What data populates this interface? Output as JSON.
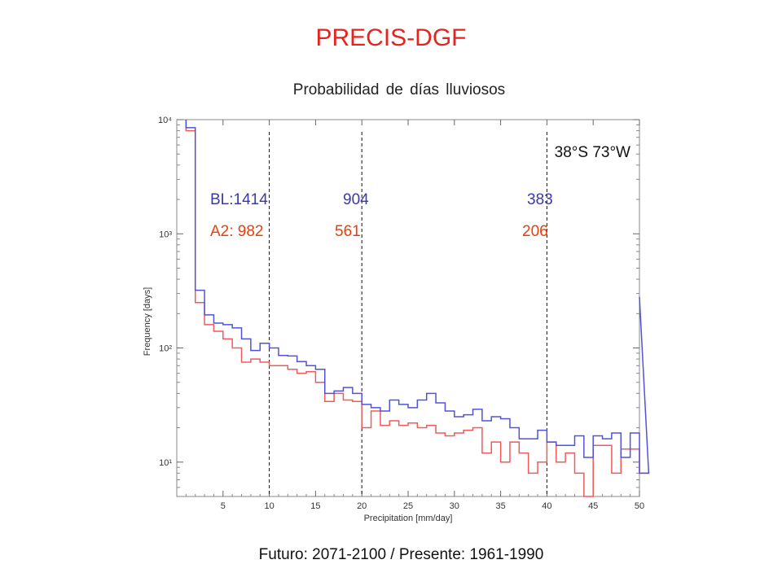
{
  "header": {
    "title": "PRECIS-DGF",
    "subtitle": "Probabilidad de días lluviosos"
  },
  "footer": {
    "caption": "Futuro: 2071-2100 / Presente: 1961-1990"
  },
  "colors": {
    "title": "#e8231f",
    "bl": "#5252d8",
    "a2": "#f05a5a",
    "bl_label": "#3a3aa6",
    "a2_label": "#e8400c"
  },
  "chart_data": {
    "type": "line",
    "step": true,
    "yscale": "log",
    "xlabel": "Precipitation [mm/day]",
    "ylabel": "Frequency [days]",
    "xlim": [
      0,
      50
    ],
    "ylim": [
      5,
      10000
    ],
    "xticks": [
      5,
      10,
      15,
      20,
      25,
      30,
      35,
      40,
      45,
      50
    ],
    "yticks": [
      10,
      100,
      1000,
      10000
    ],
    "ytick_labels": [
      "10¹",
      "10²",
      "10³",
      "10⁴"
    ],
    "location_label": "38°S 73°W",
    "vlines": [
      10,
      20,
      40
    ],
    "annotations": {
      "bl": [
        "BL:1414",
        "904",
        "383"
      ],
      "a2": [
        "A2: 982",
        "561",
        "206"
      ]
    },
    "series": [
      {
        "id": "bl",
        "x_edges": [
          1,
          2,
          3,
          4,
          5,
          6,
          7,
          8,
          9,
          10,
          11,
          12,
          13,
          14,
          15,
          16,
          17,
          18,
          19,
          20,
          21,
          22,
          23,
          24,
          25,
          26,
          27,
          28,
          29,
          30,
          31,
          32,
          33,
          34,
          35,
          36,
          37,
          38,
          39,
          40,
          41,
          42,
          43,
          44,
          45,
          46,
          47,
          48,
          49,
          50
        ],
        "values": [
          8500,
          320,
          195,
          165,
          160,
          150,
          120,
          95,
          110,
          100,
          86,
          85,
          76,
          70,
          65,
          40,
          42,
          45,
          40,
          32,
          30,
          28,
          35,
          32,
          30,
          35,
          40,
          33,
          28,
          25,
          26,
          29,
          23,
          25,
          24,
          20,
          16,
          16,
          19,
          15,
          14,
          14,
          17,
          11,
          17,
          16,
          18,
          11,
          18,
          8
        ]
      },
      {
        "id": "a2",
        "x_edges": [
          1,
          2,
          3,
          4,
          5,
          6,
          7,
          8,
          9,
          10,
          11,
          12,
          13,
          14,
          15,
          16,
          17,
          18,
          19,
          20,
          21,
          22,
          23,
          24,
          25,
          26,
          27,
          28,
          29,
          30,
          31,
          32,
          33,
          34,
          35,
          36,
          37,
          38,
          39,
          40,
          41,
          42,
          43,
          44,
          45,
          46,
          47,
          48,
          49,
          50
        ],
        "values": [
          8000,
          250,
          160,
          140,
          120,
          100,
          75,
          80,
          75,
          70,
          70,
          65,
          60,
          62,
          50,
          34,
          40,
          35,
          34,
          20,
          28,
          21,
          23,
          21,
          22,
          20,
          21,
          18,
          17,
          18,
          19,
          20,
          12,
          15,
          10,
          15,
          12,
          8,
          10,
          15,
          10,
          12,
          8,
          5,
          14,
          14,
          8,
          13,
          13,
          8
        ]
      }
    ]
  }
}
